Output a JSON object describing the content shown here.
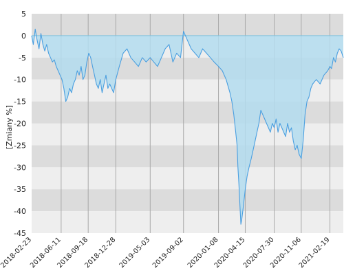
{
  "chart_data": {
    "type": "area",
    "ylabel": "[Zmiany %]",
    "ylim": [
      -45,
      5
    ],
    "yticks": [
      5,
      0,
      -5,
      -10,
      -15,
      -20,
      -25,
      -30,
      -35,
      -40,
      -45
    ],
    "xticks": [
      "2018-02-23",
      "2018-06-11",
      "2018-09-18",
      "2018-12-28",
      "2019-05-03",
      "2019-09-02",
      "2020-01-08",
      "2020-04-15",
      "2020-07-30",
      "2020-11-06",
      "2021-02-19"
    ],
    "xlim": [
      "2018-02-23",
      "2021-04-09"
    ],
    "band_colors": [
      "#dcdcdc",
      "#eeeeee"
    ],
    "line_color": "#4a9fe0",
    "fill_color": "#b3dcef",
    "series": [
      {
        "x": [
          "2018-02-23",
          "2018-03-01",
          "2018-03-08",
          "2018-03-15",
          "2018-03-22",
          "2018-03-29",
          "2018-04-05",
          "2018-04-12",
          "2018-04-19",
          "2018-04-26",
          "2018-05-03",
          "2018-05-10",
          "2018-05-17",
          "2018-05-24",
          "2018-05-31",
          "2018-06-07",
          "2018-06-14",
          "2018-06-21",
          "2018-06-28",
          "2018-07-05",
          "2018-07-12",
          "2018-07-19",
          "2018-07-26",
          "2018-08-02",
          "2018-08-09",
          "2018-08-16",
          "2018-08-23",
          "2018-08-30",
          "2018-09-06",
          "2018-09-13",
          "2018-09-20",
          "2018-09-27",
          "2018-10-04",
          "2018-10-11",
          "2018-10-18",
          "2018-10-25",
          "2018-11-01",
          "2018-11-08",
          "2018-11-15",
          "2018-11-22",
          "2018-11-29",
          "2018-12-06",
          "2018-12-13",
          "2018-12-20",
          "2018-12-28",
          "2019-01-10",
          "2019-01-24",
          "2019-02-07",
          "2019-02-21",
          "2019-03-07",
          "2019-03-21",
          "2019-04-04",
          "2019-04-18",
          "2019-05-03",
          "2019-05-16",
          "2019-05-30",
          "2019-06-13",
          "2019-06-27",
          "2019-07-11",
          "2019-07-25",
          "2019-08-08",
          "2019-08-22",
          "2019-09-02",
          "2019-09-16",
          "2019-09-30",
          "2019-10-14",
          "2019-10-28",
          "2019-11-11",
          "2019-11-25",
          "2019-12-09",
          "2019-12-23",
          "2020-01-08",
          "2020-01-22",
          "2020-02-05",
          "2020-02-19",
          "2020-02-26",
          "2020-03-04",
          "2020-03-11",
          "2020-03-16",
          "2020-03-19",
          "2020-03-23",
          "2020-03-26",
          "2020-03-30",
          "2020-04-02",
          "2020-04-06",
          "2020-04-15",
          "2020-04-22",
          "2020-04-29",
          "2020-05-07",
          "2020-05-14",
          "2020-05-21",
          "2020-05-28",
          "2020-06-04",
          "2020-06-11",
          "2020-06-18",
          "2020-06-25",
          "2020-07-02",
          "2020-07-09",
          "2020-07-16",
          "2020-07-23",
          "2020-07-30",
          "2020-08-06",
          "2020-08-13",
          "2020-08-20",
          "2020-08-27",
          "2020-09-03",
          "2020-09-10",
          "2020-09-17",
          "2020-09-24",
          "2020-10-01",
          "2020-10-08",
          "2020-10-15",
          "2020-10-22",
          "2020-10-29",
          "2020-11-06",
          "2020-11-13",
          "2020-11-20",
          "2020-11-27",
          "2020-12-04",
          "2020-12-11",
          "2020-12-18",
          "2020-12-31",
          "2021-01-14",
          "2021-01-28",
          "2021-02-11",
          "2021-02-19",
          "2021-02-25",
          "2021-03-04",
          "2021-03-11",
          "2021-03-18",
          "2021-03-25",
          "2021-04-01",
          "2021-04-09"
        ],
        "values": [
          0,
          -2,
          1.5,
          -1,
          -3,
          0.5,
          -2,
          -3.5,
          -2,
          -4,
          -5,
          -6,
          -5.5,
          -7,
          -8,
          -9,
          -10,
          -12,
          -15,
          -14,
          -12,
          -13,
          -11,
          -10,
          -8,
          -9,
          -7,
          -10,
          -9,
          -6,
          -4,
          -5,
          -7,
          -9,
          -11,
          -12,
          -10,
          -13,
          -11,
          -9,
          -12,
          -11,
          -12,
          -13,
          -10,
          -7,
          -4,
          -3,
          -5,
          -6,
          -7,
          -5,
          -6,
          -5,
          -6,
          -7,
          -5,
          -3,
          -2,
          -6,
          -4,
          -5,
          1,
          -1,
          -3,
          -4,
          -5,
          -3,
          -4,
          -5,
          -6,
          -7,
          -8,
          -10,
          -13,
          -15,
          -18,
          -22,
          -25,
          -30,
          -34,
          -38,
          -43,
          -42,
          -40,
          -35,
          -32,
          -30,
          -28,
          -26,
          -24,
          -22,
          -20,
          -17,
          -18,
          -19,
          -20,
          -21,
          -22,
          -20,
          -21,
          -19,
          -22,
          -20,
          -21,
          -22,
          -23,
          -20,
          -22,
          -21,
          -24,
          -26,
          -25,
          -27,
          -28,
          -24,
          -18,
          -15,
          -14,
          -12,
          -11,
          -10,
          -11,
          -9,
          -8,
          -7,
          -7.5,
          -5,
          -6,
          -4,
          -3,
          -3.5,
          -5
        ]
      }
    ]
  }
}
